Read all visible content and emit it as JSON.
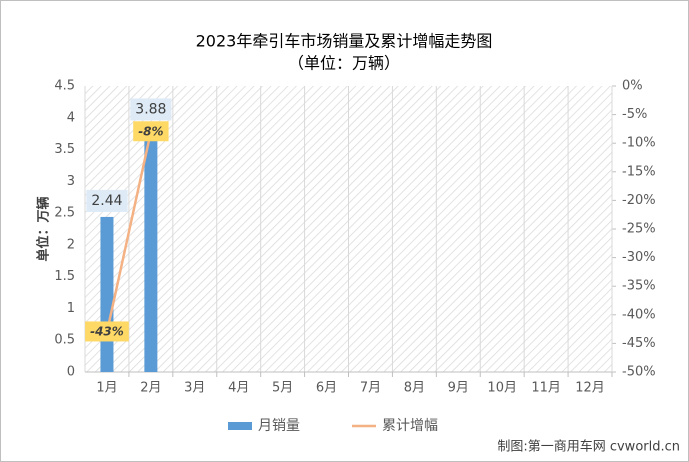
{
  "chart_data": {
    "type": "bar",
    "title": "2023年牵引车市场销量及累计增幅走势图",
    "subtitle": "（单位：万辆）",
    "y_label": "单位：万辆",
    "source": "制图:第一商用车网 cvworld.cn",
    "categories": [
      "1月",
      "2月",
      "3月",
      "4月",
      "5月",
      "6月",
      "7月",
      "8月",
      "9月",
      "10月",
      "11月",
      "12月"
    ],
    "series": [
      {
        "name": "月销量",
        "type": "bar",
        "color": "#5b9bd5",
        "values": [
          2.44,
          3.88,
          null,
          null,
          null,
          null,
          null,
          null,
          null,
          null,
          null,
          null
        ]
      },
      {
        "name": "累计增幅",
        "type": "line",
        "axis": "y2",
        "color": "#f4b183",
        "values": [
          -43,
          -8,
          null,
          null,
          null,
          null,
          null,
          null,
          null,
          null,
          null,
          null
        ],
        "value_labels": [
          "-43%",
          "-8%",
          null,
          null,
          null,
          null,
          null,
          null,
          null,
          null,
          null,
          null
        ]
      }
    ],
    "ylim": [
      0,
      4.5
    ],
    "yticks": [
      0,
      0.5,
      1,
      1.5,
      2,
      2.5,
      3,
      3.5,
      4,
      4.5
    ],
    "y2lim": [
      -50,
      0
    ],
    "y2ticks": [
      {
        "value": 0,
        "label": "0%"
      },
      {
        "value": -5,
        "label": "-5%"
      },
      {
        "value": -10,
        "label": "-10%"
      },
      {
        "value": -15,
        "label": "-15%"
      },
      {
        "value": -20,
        "label": "-20%"
      },
      {
        "value": -25,
        "label": "-25%"
      },
      {
        "value": -30,
        "label": "-30%"
      },
      {
        "value": -35,
        "label": "-35%"
      },
      {
        "value": -40,
        "label": "-40%"
      },
      {
        "value": -45,
        "label": "-45%"
      },
      {
        "value": -50,
        "label": "-50%"
      }
    ],
    "grid": true
  }
}
